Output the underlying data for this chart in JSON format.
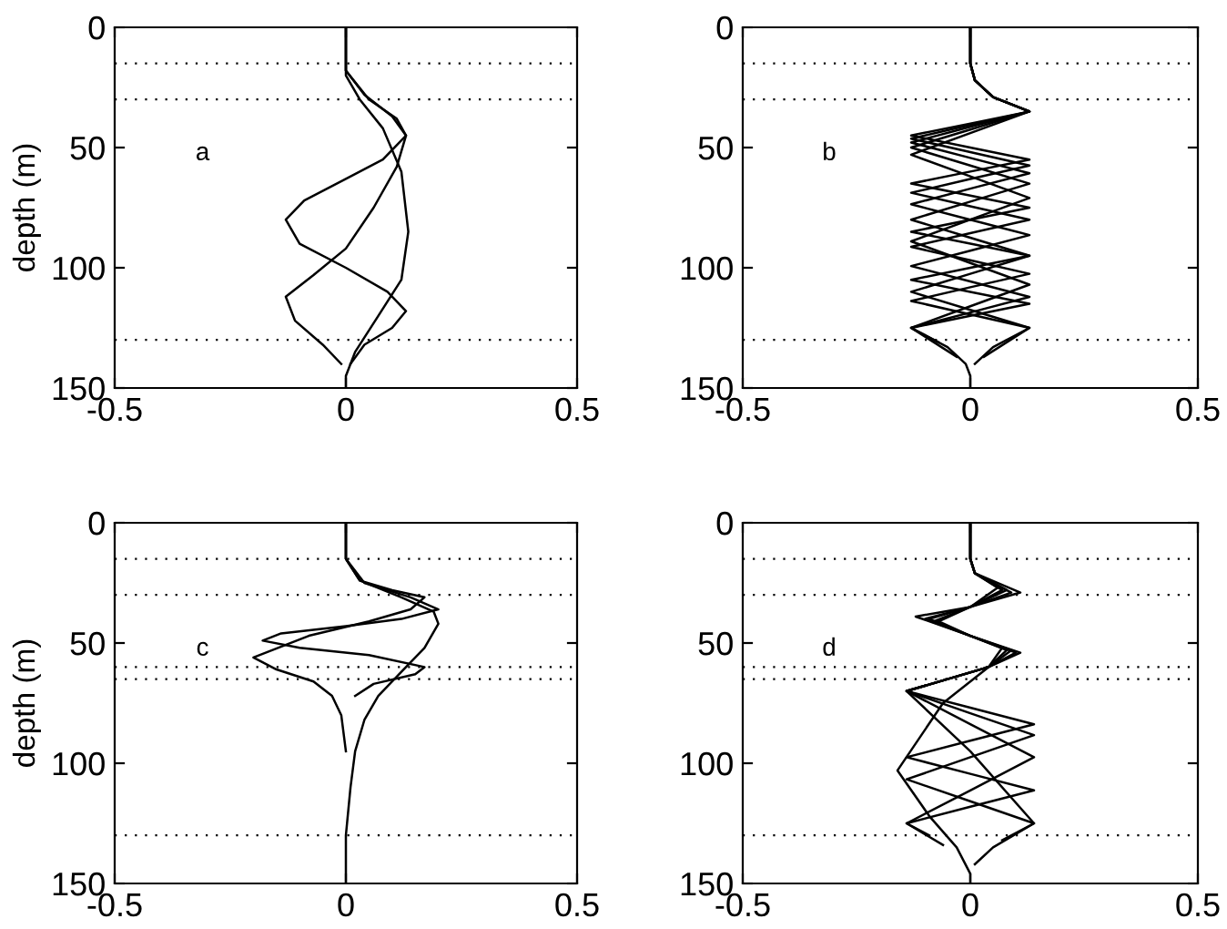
{
  "chart_data": [
    {
      "type": "line",
      "ylabel": "depth (m)",
      "annotations": [
        "a"
      ],
      "xlim": [
        -0.5,
        0.5
      ],
      "ylim": [
        150,
        0
      ],
      "xticks": [
        -0.5,
        0,
        0.5
      ],
      "yticks": [
        0,
        50,
        100,
        150
      ],
      "ref_lines": [
        {
          "axis": "y",
          "value": 15,
          "color": "#000000",
          "line_style": "dotted"
        },
        {
          "axis": "y",
          "value": 30,
          "color": "#000000",
          "line_style": "dotted"
        },
        {
          "axis": "y",
          "value": 130,
          "color": "#000000",
          "line_style": "dotted"
        }
      ],
      "series": [
        {
          "color": "#000000",
          "x": [
            0,
            0,
            0.03,
            0.08,
            0.12,
            0.135,
            0.12,
            0.07,
            0.02,
            0,
            0
          ],
          "values": [
            0,
            20,
            30,
            42,
            60,
            85,
            105,
            120,
            135,
            145,
            150
          ]
        },
        {
          "color": "#000000",
          "x": [
            0,
            0,
            0.04,
            0.1,
            0.13,
            0.11,
            0.06,
            0,
            -0.07,
            -0.13,
            -0.11,
            -0.05,
            -0.01
          ],
          "values": [
            0,
            18,
            28,
            37,
            45,
            58,
            75,
            92,
            103,
            112,
            122,
            132,
            140
          ]
        },
        {
          "color": "#000000",
          "x": [
            0,
            0,
            0.05,
            0.11,
            0.13,
            0.08,
            0,
            -0.09,
            -0.13,
            -0.1,
            0,
            0.09,
            0.13,
            0.1,
            0.04,
            0.01
          ],
          "values": [
            0,
            18,
            30,
            38,
            45,
            55,
            63,
            72,
            80,
            90,
            100,
            110,
            118,
            125,
            132,
            140
          ]
        }
      ]
    },
    {
      "type": "line",
      "annotations": [
        "b"
      ],
      "xlim": [
        -0.5,
        0.5
      ],
      "ylim": [
        150,
        0
      ],
      "xticks": [
        -0.5,
        0,
        0.5
      ],
      "yticks": [
        0,
        50,
        100,
        150
      ],
      "ref_lines": [
        {
          "axis": "y",
          "value": 15,
          "color": "#000000",
          "line_style": "dotted"
        },
        {
          "axis": "y",
          "value": 30,
          "color": "#000000",
          "line_style": "dotted"
        },
        {
          "axis": "y",
          "value": 130,
          "color": "#000000",
          "line_style": "dotted"
        }
      ],
      "series": [
        {
          "color": "#000000",
          "x": [
            0,
            0,
            0.01,
            0.05,
            0.13,
            0,
            -0.13,
            0,
            0.13,
            0,
            -0.13,
            0,
            0.13,
            0,
            -0.13,
            -0.05,
            -0.01,
            0,
            0
          ],
          "values": [
            0,
            15,
            22,
            29,
            35,
            44,
            53,
            62,
            71,
            80,
            89,
            98,
            107,
            116,
            125,
            133,
            140,
            145,
            150
          ]
        },
        {
          "color": "#000000",
          "x": [
            0,
            0,
            0.01,
            0.05,
            0.13,
            0,
            -0.13,
            0,
            0.13,
            0,
            -0.13,
            0,
            0.13,
            0,
            -0.13,
            0,
            0.13,
            0.05,
            0.01
          ],
          "values": [
            0,
            15,
            22,
            29,
            35,
            42.5,
            50,
            57.5,
            65,
            72.5,
            80,
            87.5,
            95,
            102.5,
            110,
            117.5,
            125,
            133,
            140
          ]
        },
        {
          "color": "#000000",
          "x": [
            0,
            0,
            0.01,
            0.05,
            0.13,
            0,
            -0.13,
            0,
            0.13,
            0,
            -0.13,
            0,
            0.13,
            0,
            -0.13,
            0,
            0.13,
            0,
            -0.13,
            -0.03
          ],
          "values": [
            0,
            15,
            22,
            29,
            35,
            41.4,
            47.9,
            54.3,
            60.7,
            67.1,
            73.6,
            80,
            86.4,
            92.9,
            99.3,
            105.7,
            112.1,
            118.6,
            125,
            137
          ]
        },
        {
          "color": "#000000",
          "x": [
            0,
            0,
            0.01,
            0.05,
            0.13,
            0,
            -0.13,
            0,
            0.13,
            0,
            -0.13,
            0,
            0.13,
            0,
            -0.13,
            0,
            0.13,
            0,
            -0.13,
            0,
            0.13,
            0.03
          ],
          "values": [
            0,
            15,
            22,
            29,
            35,
            40.6,
            46.3,
            51.9,
            57.5,
            63.1,
            68.8,
            74.4,
            80,
            85.6,
            91.3,
            96.9,
            102.5,
            108.1,
            113.8,
            119.4,
            125,
            137
          ]
        },
        {
          "color": "#000000",
          "x": [
            0,
            0,
            0.01,
            0.05,
            0.13,
            0,
            -0.13,
            0,
            0.13,
            0,
            -0.13,
            0,
            0.13,
            0,
            -0.13,
            0,
            0.13,
            0,
            -0.13,
            0,
            0.13,
            0,
            -0.13,
            -0.07
          ],
          "values": [
            0,
            15,
            22,
            29,
            35,
            40,
            45,
            50,
            55,
            60,
            65,
            70,
            75,
            80,
            85,
            90,
            95,
            100,
            105,
            110,
            115,
            120,
            125,
            131
          ]
        }
      ]
    },
    {
      "type": "line",
      "ylabel": "depth (m)",
      "annotations": [
        "c"
      ],
      "xlim": [
        -0.5,
        0.5
      ],
      "ylim": [
        150,
        0
      ],
      "xticks": [
        -0.5,
        0,
        0.5
      ],
      "yticks": [
        0,
        50,
        100,
        150
      ],
      "ref_lines": [
        {
          "axis": "y",
          "value": 15,
          "color": "#000000",
          "line_style": "dotted"
        },
        {
          "axis": "y",
          "value": 30,
          "color": "#000000",
          "line_style": "dotted"
        },
        {
          "axis": "y",
          "value": 60,
          "color": "#000000",
          "line_style": "dotted"
        },
        {
          "axis": "y",
          "value": 65,
          "color": "#000000",
          "line_style": "dotted"
        },
        {
          "axis": "y",
          "value": 130,
          "color": "#000000",
          "line_style": "dotted"
        }
      ],
      "series": [
        {
          "color": "#000000",
          "x": [
            0,
            0,
            0.03,
            0.12,
            0.19,
            0.2,
            0.17,
            0.12,
            0.07,
            0.04,
            0.02,
            0.01,
            0,
            0
          ],
          "values": [
            0,
            15,
            24,
            31,
            37,
            42,
            52,
            62,
            72,
            82,
            95,
            110,
            130,
            150
          ]
        },
        {
          "color": "#000000",
          "x": [
            0,
            0,
            0.03,
            0.1,
            0.17,
            0.14,
            0.05,
            -0.08,
            -0.2,
            -0.15,
            -0.07,
            -0.03,
            -0.01,
            0
          ],
          "values": [
            0,
            15,
            24,
            28,
            31,
            36,
            41,
            47,
            56,
            61,
            66,
            72,
            80,
            95
          ]
        },
        {
          "color": "#000000",
          "x": [
            0,
            0,
            0.04,
            0.14,
            0.2,
            0.12,
            0,
            -0.14,
            -0.18,
            -0.1,
            0.05,
            0.17,
            0.15,
            0.06,
            0.02
          ],
          "values": [
            0,
            15,
            25,
            31,
            36,
            40,
            43,
            46,
            49,
            52,
            55,
            60,
            63,
            67,
            72
          ]
        }
      ]
    },
    {
      "type": "line",
      "annotations": [
        "d"
      ],
      "xlim": [
        -0.5,
        0.5
      ],
      "ylim": [
        150,
        0
      ],
      "xticks": [
        -0.5,
        0,
        0.5
      ],
      "yticks": [
        0,
        50,
        100,
        150
      ],
      "ref_lines": [
        {
          "axis": "y",
          "value": 15,
          "color": "#000000",
          "line_style": "dotted"
        },
        {
          "axis": "y",
          "value": 30,
          "color": "#000000",
          "line_style": "dotted"
        },
        {
          "axis": "y",
          "value": 60,
          "color": "#000000",
          "line_style": "dotted"
        },
        {
          "axis": "y",
          "value": 65,
          "color": "#000000",
          "line_style": "dotted"
        },
        {
          "axis": "y",
          "value": 130,
          "color": "#000000",
          "line_style": "dotted"
        }
      ],
      "series": [
        {
          "color": "#000000",
          "x": [
            0,
            0,
            0.01,
            0.06,
            0,
            -0.07,
            0,
            0.07,
            0.04,
            -0.06,
            -0.16,
            -0.09,
            -0.03,
            0,
            0
          ],
          "values": [
            0,
            15,
            21,
            27,
            35,
            41,
            47,
            52,
            60,
            75,
            103,
            122,
            135,
            146,
            150
          ]
        },
        {
          "color": "#000000",
          "x": [
            0,
            0,
            0.01,
            0.07,
            0,
            -0.08,
            0,
            0.08,
            0.04,
            -0.14,
            0,
            0.14,
            0.05,
            0.01
          ],
          "values": [
            0,
            15,
            21,
            28,
            35,
            41,
            47,
            53,
            60,
            70,
            95,
            125,
            135,
            142
          ]
        },
        {
          "color": "#000000",
          "x": [
            0,
            0,
            0.01,
            0.08,
            0,
            -0.09,
            0,
            0.09,
            0.04,
            -0.14,
            0,
            0.14,
            0,
            -0.14,
            -0.06
          ],
          "values": [
            0,
            15,
            21,
            28,
            35,
            40,
            47,
            53,
            60,
            70,
            83.8,
            97.5,
            111.3,
            125,
            134
          ]
        },
        {
          "color": "#000000",
          "x": [
            0,
            0,
            0.01,
            0.09,
            0,
            -0.1,
            0,
            0.1,
            0.04,
            -0.14,
            0,
            0.14,
            0,
            -0.14,
            0,
            0.14,
            0.07
          ],
          "values": [
            0,
            15,
            21,
            29,
            35,
            40,
            47,
            54,
            60,
            70,
            79.2,
            88.3,
            97.5,
            106.7,
            115.8,
            125,
            132
          ]
        },
        {
          "color": "#000000",
          "x": [
            0,
            0,
            0.01,
            0.11,
            0,
            -0.12,
            0,
            0.11,
            0.04,
            -0.14,
            0,
            0.14,
            0,
            -0.14,
            0,
            0.14,
            0,
            -0.14,
            -0.09
          ],
          "values": [
            0,
            15,
            21,
            29,
            35,
            39,
            47,
            54,
            60,
            70,
            76.9,
            83.8,
            90.6,
            97.5,
            104.4,
            111.3,
            118.1,
            125,
            130
          ]
        }
      ]
    }
  ]
}
